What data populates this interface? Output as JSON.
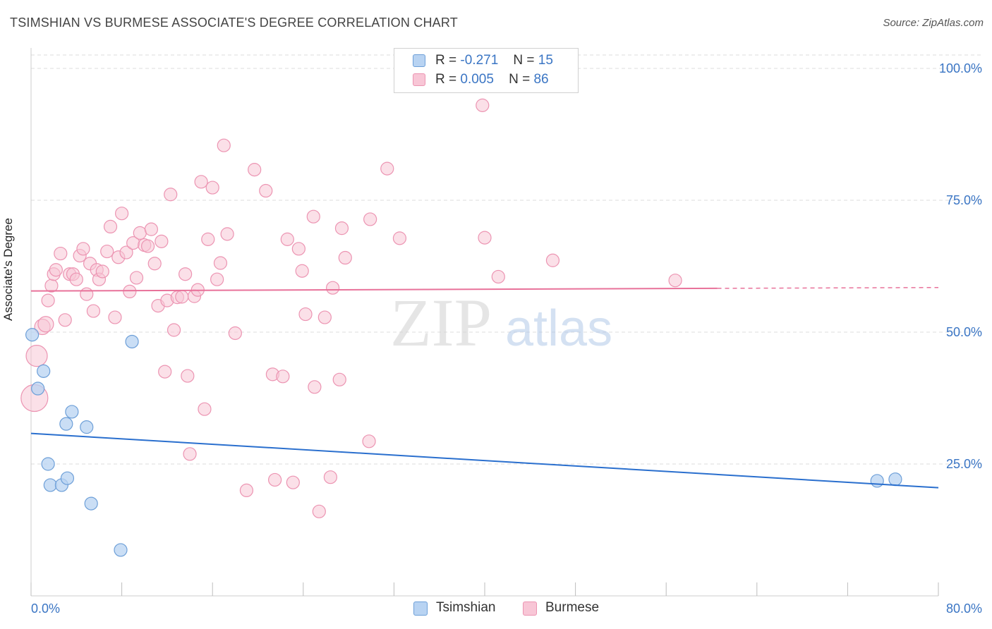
{
  "title": "TSIMSHIAN VS BURMESE ASSOCIATE'S DEGREE CORRELATION CHART",
  "source": "Source: ZipAtlas.com",
  "colors": {
    "tsimshian_fill": "#b8d3f2",
    "tsimshian_stroke": "#6d9fd8",
    "tsimshian_line": "#2a6fce",
    "burmese_fill": "#f8c6d6",
    "burmese_stroke": "#ec94b2",
    "burmese_line": "#e8729a",
    "axis_text": "#3a75c4",
    "grid": "#dddddd"
  },
  "legend": {
    "row1": {
      "r_label": "R =",
      "r_value": "-0.271",
      "n_label": "N =",
      "n_value": "15"
    },
    "row2": {
      "r_label": "R =",
      "r_value": "0.005",
      "n_label": "N =",
      "n_value": "86"
    }
  },
  "bottom_legend": {
    "series1": "Tsimshian",
    "series2": "Burmese"
  },
  "watermark": {
    "zip": "ZIP",
    "atlas": "atlas"
  },
  "chart_data": {
    "type": "scatter",
    "ylabel": "Associate's Degree",
    "xlim": [
      0,
      80
    ],
    "ylim": [
      0,
      100
    ],
    "x_tick_labels": [
      "0.0%",
      "80.0%"
    ],
    "y_tick_labels": [
      "100.0%",
      "75.0%",
      "50.0%",
      "25.0%"
    ],
    "y_ticks": [
      100,
      75,
      50,
      25
    ],
    "series": [
      {
        "name": "Tsimshian",
        "trend": {
          "x": [
            0,
            80
          ],
          "y": [
            30.8,
            20.5
          ]
        },
        "points": [
          [
            0.1,
            49.5
          ],
          [
            0.6,
            39.3
          ],
          [
            1.1,
            42.6
          ],
          [
            1.5,
            25.0
          ],
          [
            1.7,
            21.0
          ],
          [
            2.7,
            21.0
          ],
          [
            3.2,
            22.3
          ],
          [
            3.1,
            32.6
          ],
          [
            3.6,
            34.9
          ],
          [
            4.9,
            32.0
          ],
          [
            5.3,
            17.5
          ],
          [
            7.9,
            8.7
          ],
          [
            8.9,
            48.2
          ],
          [
            74.6,
            21.8
          ],
          [
            76.2,
            22.1
          ]
        ]
      },
      {
        "name": "Burmese",
        "trend": {
          "x": [
            0,
            60.5
          ],
          "y": [
            57.8,
            58.3
          ],
          "dashed_to_x": 80
        },
        "points": [
          [
            0.3,
            37.5
          ],
          [
            0.5,
            45.5
          ],
          [
            1.0,
            51.0
          ],
          [
            1.3,
            51.5
          ],
          [
            1.5,
            56.0
          ],
          [
            1.8,
            58.8
          ],
          [
            2.0,
            61.0
          ],
          [
            2.2,
            61.8
          ],
          [
            2.6,
            64.9
          ],
          [
            3.0,
            52.3
          ],
          [
            3.4,
            61.0
          ],
          [
            3.7,
            61.0
          ],
          [
            4.0,
            60.0
          ],
          [
            4.3,
            64.5
          ],
          [
            4.6,
            65.8
          ],
          [
            4.9,
            57.2
          ],
          [
            5.2,
            63.0
          ],
          [
            5.5,
            54.0
          ],
          [
            5.8,
            61.8
          ],
          [
            6.0,
            60.0
          ],
          [
            6.3,
            61.5
          ],
          [
            6.7,
            65.3
          ],
          [
            7.0,
            70.0
          ],
          [
            7.4,
            52.8
          ],
          [
            7.7,
            64.2
          ],
          [
            8.0,
            72.5
          ],
          [
            8.4,
            65.1
          ],
          [
            8.7,
            57.7
          ],
          [
            9.0,
            66.9
          ],
          [
            9.3,
            60.3
          ],
          [
            9.6,
            68.8
          ],
          [
            10.0,
            66.5
          ],
          [
            10.3,
            66.3
          ],
          [
            10.6,
            69.5
          ],
          [
            10.9,
            63.0
          ],
          [
            11.2,
            55.0
          ],
          [
            11.5,
            67.2
          ],
          [
            11.8,
            42.5
          ],
          [
            12.0,
            56.0
          ],
          [
            12.3,
            76.1
          ],
          [
            12.6,
            50.4
          ],
          [
            12.9,
            56.6
          ],
          [
            13.3,
            56.7
          ],
          [
            13.6,
            61.0
          ],
          [
            13.8,
            41.7
          ],
          [
            14.0,
            26.9
          ],
          [
            14.4,
            56.8
          ],
          [
            14.7,
            58.0
          ],
          [
            15.0,
            78.5
          ],
          [
            15.3,
            35.4
          ],
          [
            15.6,
            67.6
          ],
          [
            16.0,
            77.4
          ],
          [
            16.4,
            60.0
          ],
          [
            16.7,
            63.1
          ],
          [
            17.0,
            85.4
          ],
          [
            17.3,
            68.6
          ],
          [
            18.0,
            49.8
          ],
          [
            19.0,
            20.0
          ],
          [
            19.7,
            80.8
          ],
          [
            20.7,
            76.8
          ],
          [
            21.3,
            42.0
          ],
          [
            21.5,
            22.0
          ],
          [
            22.2,
            41.6
          ],
          [
            22.6,
            67.6
          ],
          [
            23.1,
            21.5
          ],
          [
            23.6,
            65.8
          ],
          [
            23.9,
            61.6
          ],
          [
            24.2,
            53.4
          ],
          [
            24.9,
            71.9
          ],
          [
            25.0,
            39.6
          ],
          [
            25.4,
            16.0
          ],
          [
            25.9,
            52.8
          ],
          [
            26.4,
            22.5
          ],
          [
            26.6,
            58.4
          ],
          [
            27.2,
            41.0
          ],
          [
            27.4,
            69.7
          ],
          [
            27.7,
            64.1
          ],
          [
            29.8,
            29.3
          ],
          [
            29.9,
            71.4
          ],
          [
            31.4,
            81.0
          ],
          [
            32.5,
            67.8
          ],
          [
            39.8,
            93.0
          ],
          [
            40.0,
            67.9
          ],
          [
            41.2,
            60.5
          ],
          [
            46.0,
            63.6
          ],
          [
            56.8,
            59.8
          ]
        ]
      }
    ]
  }
}
